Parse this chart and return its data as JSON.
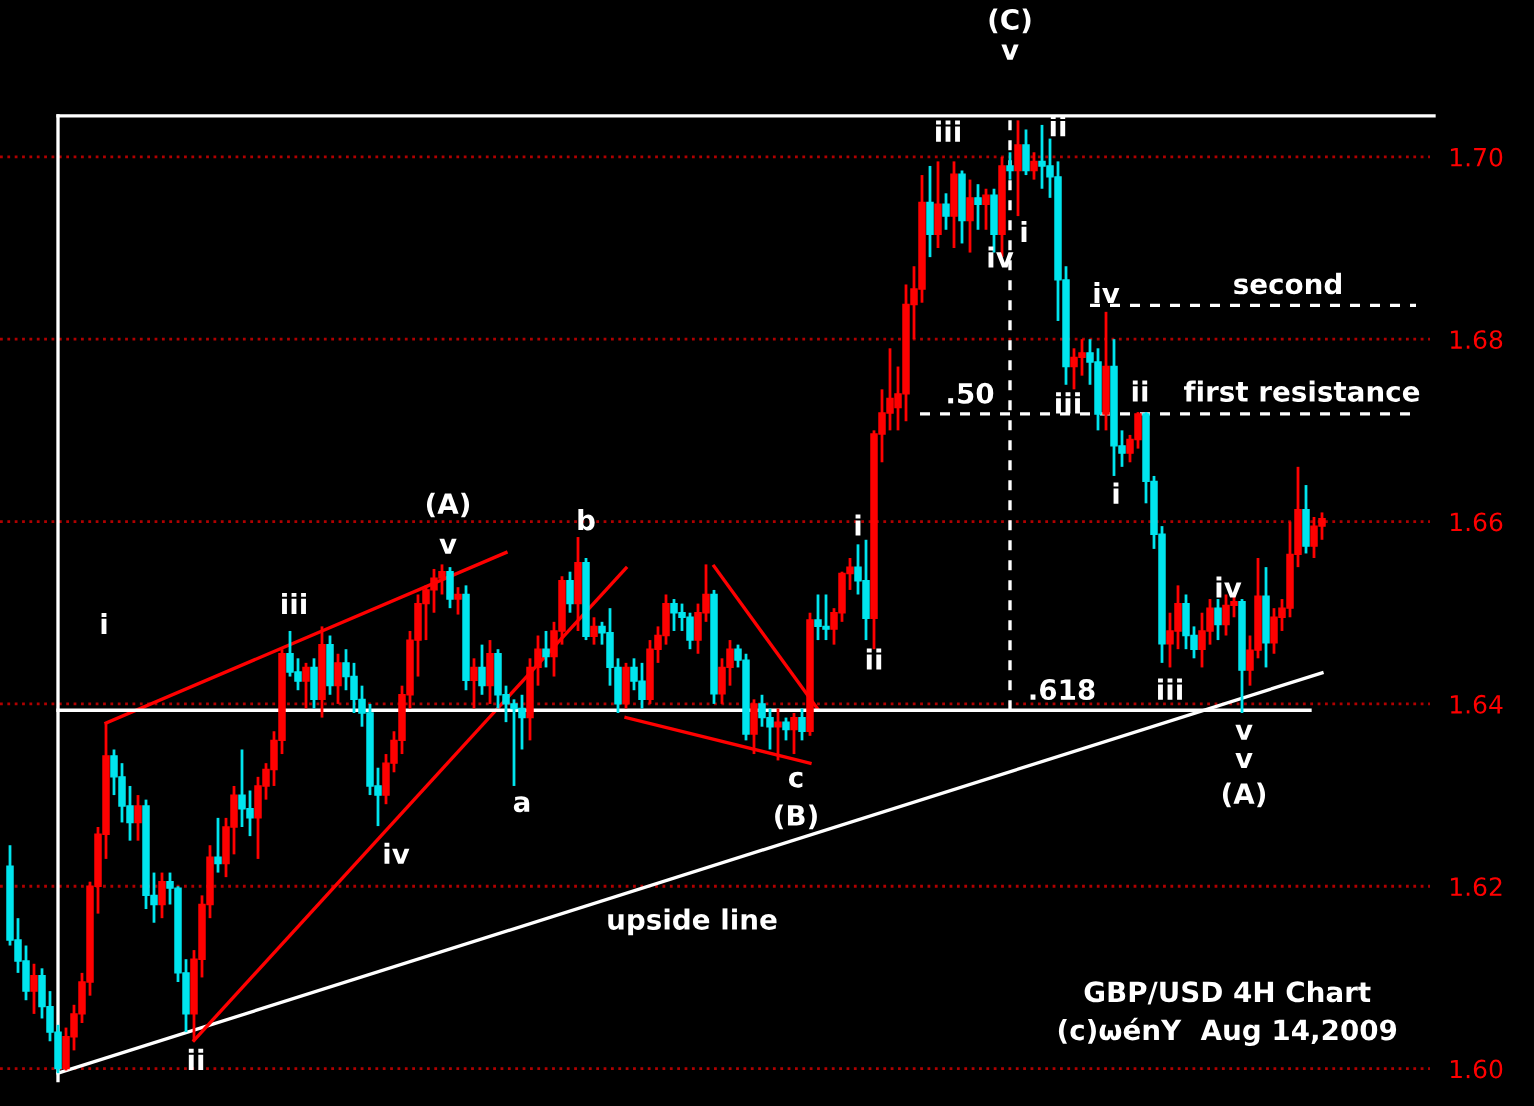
{
  "chart_data": {
    "type": "candlestick",
    "categories": [
      null,
      null,
      null,
      null,
      null,
      null,
      null,
      null,
      null,
      null,
      null,
      null,
      null,
      null,
      null,
      null,
      null,
      null,
      null,
      null,
      null,
      null,
      null,
      null,
      null,
      null,
      null,
      null,
      null,
      null,
      null,
      null,
      null,
      null,
      null,
      null,
      null,
      null,
      null,
      null,
      null,
      null,
      null,
      null,
      null,
      null,
      null,
      null,
      null,
      null,
      null,
      null,
      null,
      null,
      null,
      null,
      null,
      null,
      null,
      null,
      null,
      null,
      null,
      null,
      null,
      null,
      null,
      null,
      null,
      null,
      null,
      null,
      null,
      null,
      null,
      null,
      null,
      null,
      null,
      null,
      null,
      null,
      null,
      null,
      null,
      null,
      null,
      null,
      null,
      null,
      null,
      null,
      null,
      null,
      null,
      null,
      null,
      null,
      null,
      null,
      null,
      null,
      null,
      null,
      null,
      null,
      null,
      null,
      null,
      null,
      null,
      null,
      null,
      null,
      null,
      null,
      null,
      null,
      null,
      null,
      null,
      null,
      null,
      null,
      null,
      null,
      null,
      null,
      null,
      null,
      null,
      null,
      null,
      null,
      null,
      null,
      null,
      null,
      null,
      null,
      null,
      null,
      null,
      null,
      null,
      null,
      null,
      null,
      null,
      null,
      null,
      null,
      null,
      null,
      null,
      null,
      null,
      null,
      null,
      null,
      null,
      null,
      null,
      null,
      null
    ],
    "ohlc": [
      [
        1.6222,
        1.6245,
        1.6135,
        1.6141
      ],
      [
        1.6141,
        1.6165,
        1.6105,
        1.6118
      ],
      [
        1.6118,
        1.6135,
        1.6075,
        1.6085
      ],
      [
        1.6085,
        1.6115,
        1.606,
        1.6102
      ],
      [
        1.6102,
        1.611,
        1.6055,
        1.6068
      ],
      [
        1.6068,
        1.6085,
        1.603,
        1.604
      ],
      [
        1.604,
        1.6048,
        1.5995,
        1.6
      ],
      [
        1.6,
        1.6045,
        1.5998,
        1.6035
      ],
      [
        1.6035,
        1.607,
        1.602,
        1.606
      ],
      [
        1.606,
        1.6105,
        1.605,
        1.6095
      ],
      [
        1.6095,
        1.6205,
        1.608,
        1.62
      ],
      [
        1.62,
        1.6265,
        1.617,
        1.6257
      ],
      [
        1.6257,
        1.6378,
        1.623,
        1.6343
      ],
      [
        1.6343,
        1.635,
        1.63,
        1.632
      ],
      [
        1.632,
        1.6335,
        1.627,
        1.6288
      ],
      [
        1.6288,
        1.631,
        1.625,
        1.627
      ],
      [
        1.627,
        1.63,
        1.625,
        1.6288
      ],
      [
        1.6288,
        1.6295,
        1.6175,
        1.619
      ],
      [
        1.619,
        1.6215,
        1.616,
        1.618
      ],
      [
        1.618,
        1.6215,
        1.6165,
        1.6205
      ],
      [
        1.6205,
        1.6215,
        1.618,
        1.6198
      ],
      [
        1.6198,
        1.62,
        1.6095,
        1.6105
      ],
      [
        1.6105,
        1.612,
        1.604,
        1.606
      ],
      [
        1.606,
        1.613,
        1.603,
        1.612
      ],
      [
        1.612,
        1.619,
        1.61,
        1.618
      ],
      [
        1.618,
        1.6245,
        1.6165,
        1.6232
      ],
      [
        1.6232,
        1.6275,
        1.6215,
        1.6225
      ],
      [
        1.6225,
        1.6275,
        1.621,
        1.6265
      ],
      [
        1.6265,
        1.631,
        1.6235,
        1.63
      ],
      [
        1.63,
        1.635,
        1.6265,
        1.6285
      ],
      [
        1.6285,
        1.6305,
        1.6255,
        1.6275
      ],
      [
        1.6275,
        1.632,
        1.623,
        1.631
      ],
      [
        1.631,
        1.6335,
        1.6295,
        1.6328
      ],
      [
        1.6328,
        1.637,
        1.631,
        1.636
      ],
      [
        1.636,
        1.646,
        1.6345,
        1.6455
      ],
      [
        1.6455,
        1.648,
        1.643,
        1.6435
      ],
      [
        1.6435,
        1.645,
        1.6415,
        1.6425
      ],
      [
        1.6425,
        1.6445,
        1.6395,
        1.644
      ],
      [
        1.644,
        1.645,
        1.6395,
        1.6405
      ],
      [
        1.6405,
        1.6485,
        1.6385,
        1.6465
      ],
      [
        1.6465,
        1.6475,
        1.641,
        1.642
      ],
      [
        1.642,
        1.6455,
        1.64,
        1.6445
      ],
      [
        1.6445,
        1.646,
        1.6415,
        1.643
      ],
      [
        1.643,
        1.6445,
        1.639,
        1.6405
      ],
      [
        1.6405,
        1.642,
        1.6375,
        1.639
      ],
      [
        1.639,
        1.64,
        1.63,
        1.631
      ],
      [
        1.631,
        1.633,
        1.6266,
        1.63
      ],
      [
        1.63,
        1.6345,
        1.629,
        1.6335
      ],
      [
        1.6335,
        1.637,
        1.6325,
        1.636
      ],
      [
        1.636,
        1.642,
        1.6345,
        1.641
      ],
      [
        1.641,
        1.648,
        1.6395,
        1.647
      ],
      [
        1.647,
        1.652,
        1.643,
        1.651
      ],
      [
        1.651,
        1.653,
        1.647,
        1.6525
      ],
      [
        1.6525,
        1.6548,
        1.65,
        1.6538
      ],
      [
        1.6538,
        1.6553,
        1.652,
        1.6545
      ],
      [
        1.6545,
        1.655,
        1.6505,
        1.6515
      ],
      [
        1.6515,
        1.6528,
        1.6498,
        1.652
      ],
      [
        1.652,
        1.653,
        1.6415,
        1.6426
      ],
      [
        1.6426,
        1.645,
        1.6395,
        1.644
      ],
      [
        1.644,
        1.6465,
        1.641,
        1.642
      ],
      [
        1.642,
        1.647,
        1.64,
        1.6455
      ],
      [
        1.6455,
        1.646,
        1.6395,
        1.641
      ],
      [
        1.641,
        1.642,
        1.638,
        1.64
      ],
      [
        1.64,
        1.6405,
        1.631,
        1.6395
      ],
      [
        1.6395,
        1.641,
        1.635,
        1.6385
      ],
      [
        1.6385,
        1.645,
        1.636,
        1.644
      ],
      [
        1.644,
        1.6475,
        1.642,
        1.646
      ],
      [
        1.646,
        1.648,
        1.644,
        1.6452
      ],
      [
        1.6452,
        1.649,
        1.643,
        1.648
      ],
      [
        1.648,
        1.654,
        1.6465,
        1.6535
      ],
      [
        1.6535,
        1.6545,
        1.65,
        1.651
      ],
      [
        1.651,
        1.6583,
        1.648,
        1.6555
      ],
      [
        1.6555,
        1.656,
        1.647,
        1.6474
      ],
      [
        1.6474,
        1.6495,
        1.6465,
        1.6485
      ],
      [
        1.6485,
        1.649,
        1.6465,
        1.6478
      ],
      [
        1.6478,
        1.6505,
        1.642,
        1.644
      ],
      [
        1.644,
        1.645,
        1.639,
        1.64
      ],
      [
        1.64,
        1.6445,
        1.6395,
        1.644
      ],
      [
        1.644,
        1.645,
        1.6415,
        1.6425
      ],
      [
        1.6425,
        1.6445,
        1.6395,
        1.6405
      ],
      [
        1.6405,
        1.647,
        1.64,
        1.646
      ],
      [
        1.646,
        1.6485,
        1.6445,
        1.6475
      ],
      [
        1.6475,
        1.652,
        1.6465,
        1.651
      ],
      [
        1.651,
        1.6515,
        1.648,
        1.65
      ],
      [
        1.65,
        1.651,
        1.648,
        1.6495
      ],
      [
        1.6495,
        1.65,
        1.646,
        1.647
      ],
      [
        1.647,
        1.651,
        1.6455,
        1.65
      ],
      [
        1.65,
        1.6553,
        1.649,
        1.652
      ],
      [
        1.652,
        1.6525,
        1.64,
        1.6411
      ],
      [
        1.6411,
        1.645,
        1.64,
        1.644
      ],
      [
        1.644,
        1.647,
        1.642,
        1.646
      ],
      [
        1.646,
        1.6465,
        1.644,
        1.6448
      ],
      [
        1.6448,
        1.6455,
        1.636,
        1.6367
      ],
      [
        1.6367,
        1.6405,
        1.6345,
        1.64
      ],
      [
        1.64,
        1.641,
        1.6375,
        1.6385
      ],
      [
        1.6385,
        1.6395,
        1.635,
        1.6375
      ],
      [
        1.6375,
        1.6395,
        1.6338,
        1.638
      ],
      [
        1.638,
        1.6385,
        1.636,
        1.6372
      ],
      [
        1.6372,
        1.639,
        1.6345,
        1.6385
      ],
      [
        1.6385,
        1.6395,
        1.636,
        1.637
      ],
      [
        1.637,
        1.65,
        1.6365,
        1.6492
      ],
      [
        1.6492,
        1.652,
        1.647,
        1.6485
      ],
      [
        1.6485,
        1.652,
        1.647,
        1.6482
      ],
      [
        1.6482,
        1.6505,
        1.6465,
        1.65
      ],
      [
        1.65,
        1.6545,
        1.649,
        1.6543
      ],
      [
        1.6543,
        1.656,
        1.6525,
        1.655
      ],
      [
        1.655,
        1.6575,
        1.652,
        1.6535
      ],
      [
        1.6535,
        1.658,
        1.647,
        1.6494
      ],
      [
        1.6494,
        1.67,
        1.646,
        1.6696
      ],
      [
        1.6696,
        1.6745,
        1.6665,
        1.6719
      ],
      [
        1.6719,
        1.679,
        1.67,
        1.6735
      ],
      [
        1.6725,
        1.677,
        1.67,
        1.674
      ],
      [
        1.674,
        1.686,
        1.671,
        1.6838
      ],
      [
        1.6838,
        1.688,
        1.68,
        1.6855
      ],
      [
        1.6855,
        1.698,
        1.684,
        1.695
      ],
      [
        1.695,
        1.699,
        1.689,
        1.6915
      ],
      [
        1.6915,
        1.6995,
        1.69,
        1.6948
      ],
      [
        1.6948,
        1.696,
        1.692,
        1.6935
      ],
      [
        1.6935,
        1.6995,
        1.69,
        1.6981
      ],
      [
        1.6981,
        1.6985,
        1.6905,
        1.693
      ],
      [
        1.693,
        1.6975,
        1.6895,
        1.6955
      ],
      [
        1.6955,
        1.697,
        1.692,
        1.6948
      ],
      [
        1.6948,
        1.6965,
        1.692,
        1.6958
      ],
      [
        1.6958,
        1.6965,
        1.6895,
        1.6915
      ],
      [
        1.6915,
        1.7,
        1.689,
        1.699
      ],
      [
        1.699,
        1.7005,
        1.6975,
        1.6985
      ],
      [
        1.6985,
        1.704,
        1.6935,
        1.7013
      ],
      [
        1.7013,
        1.703,
        1.698,
        1.6985
      ],
      [
        1.6985,
        1.7005,
        1.6975,
        1.6995
      ],
      [
        1.6995,
        1.7035,
        1.6965,
        1.699
      ],
      [
        1.699,
        1.702,
        1.6955,
        1.6978
      ],
      [
        1.6978,
        1.6995,
        1.682,
        1.6865
      ],
      [
        1.6865,
        1.688,
        1.675,
        1.677
      ],
      [
        1.677,
        1.679,
        1.6745,
        1.678
      ],
      [
        1.678,
        1.68,
        1.676,
        1.6785
      ],
      [
        1.6785,
        1.68,
        1.675,
        1.6775
      ],
      [
        1.6775,
        1.679,
        1.67,
        1.6718
      ],
      [
        1.6718,
        1.683,
        1.67,
        1.677
      ],
      [
        1.677,
        1.68,
        1.665,
        1.6683
      ],
      [
        1.6683,
        1.67,
        1.666,
        1.6675
      ],
      [
        1.6675,
        1.6695,
        1.6665,
        1.669
      ],
      [
        1.669,
        1.672,
        1.668,
        1.6718
      ],
      [
        1.6718,
        1.672,
        1.662,
        1.6644
      ],
      [
        1.6644,
        1.665,
        1.657,
        1.6586
      ],
      [
        1.6586,
        1.6595,
        1.6445,
        1.6466
      ],
      [
        1.6466,
        1.65,
        1.644,
        1.648
      ],
      [
        1.648,
        1.653,
        1.646,
        1.651
      ],
      [
        1.651,
        1.652,
        1.646,
        1.6475
      ],
      [
        1.6475,
        1.6485,
        1.645,
        1.646
      ],
      [
        1.646,
        1.65,
        1.644,
        1.648
      ],
      [
        1.648,
        1.6515,
        1.6465,
        1.6505
      ],
      [
        1.6505,
        1.6515,
        1.647,
        1.6487
      ],
      [
        1.6487,
        1.652,
        1.6475,
        1.6508
      ],
      [
        1.6508,
        1.652,
        1.6495,
        1.6512
      ],
      [
        1.6512,
        1.6515,
        1.639,
        1.6437
      ],
      [
        1.6437,
        1.6475,
        1.642,
        1.6459
      ],
      [
        1.6459,
        1.656,
        1.645,
        1.6518
      ],
      [
        1.6518,
        1.655,
        1.644,
        1.6467
      ],
      [
        1.6467,
        1.6505,
        1.6455,
        1.6495
      ],
      [
        1.6495,
        1.6515,
        1.648,
        1.6505
      ],
      [
        1.6505,
        1.66,
        1.6495,
        1.6564
      ],
      [
        1.6564,
        1.666,
        1.655,
        1.6613
      ],
      [
        1.6613,
        1.664,
        1.6565,
        1.6573
      ],
      [
        1.6573,
        1.6605,
        1.656,
        1.6595
      ],
      [
        1.6595,
        1.661,
        1.658,
        1.6603
      ]
    ],
    "series": [
      {
        "type": "line",
        "name": "upside line",
        "color": "#ffffff",
        "values": [
          null,
          null,
          null,
          null,
          null,
          null,
          1.5995,
          null,
          null,
          null,
          null,
          null,
          null,
          null,
          null,
          null,
          null,
          null,
          null,
          null,
          null,
          null,
          null,
          null,
          null,
          null,
          null,
          null,
          null,
          null,
          null,
          null,
          null,
          null,
          null,
          null,
          null,
          null,
          null,
          null,
          null,
          null,
          null,
          null,
          null,
          null,
          null,
          null,
          null,
          null,
          null,
          null,
          null,
          null,
          null,
          null,
          null,
          null,
          null,
          null,
          null,
          null,
          null,
          null,
          null,
          null,
          null,
          null,
          null,
          null,
          null,
          null,
          null,
          null,
          null,
          null,
          null,
          null,
          null,
          null,
          null,
          null,
          null,
          null,
          null,
          null,
          null,
          null,
          null,
          null,
          null,
          null,
          null,
          null,
          null,
          null,
          null,
          null,
          null,
          null,
          null,
          null,
          null,
          null,
          null,
          null,
          null,
          null,
          null,
          null,
          null,
          null,
          null,
          null,
          null,
          null,
          null,
          null,
          null,
          null,
          null,
          null,
          null,
          null,
          null,
          null,
          null,
          null,
          null,
          null,
          null,
          null,
          null,
          null,
          null,
          null,
          null,
          null,
          null,
          null,
          null,
          null,
          null,
          null,
          null,
          null,
          null,
          null,
          null,
          null,
          null,
          null,
          null,
          null,
          null,
          null,
          null,
          null,
          null,
          null,
          null,
          null,
          null,
          null,
          1.6434
        ]
      },
      {
        "type": "line",
        "color": "#ff0000",
        "values": [
          null,
          null,
          null,
          null,
          null,
          null,
          null,
          null,
          null,
          null,
          null,
          null,
          1.6379,
          null,
          null,
          null,
          null,
          null,
          null,
          null,
          null,
          null,
          null,
          null,
          null,
          null,
          null,
          null,
          null,
          null,
          null,
          null,
          null,
          null,
          null,
          null,
          null,
          null,
          null,
          null,
          null,
          null,
          null,
          null,
          null,
          null,
          null,
          null,
          null,
          null,
          null,
          null,
          null,
          null,
          null,
          null,
          null,
          null,
          null,
          null,
          null,
          null,
          1.6566,
          null,
          null,
          null,
          null,
          null,
          null,
          null,
          null,
          null,
          null,
          null,
          null,
          null,
          null,
          null,
          null,
          null,
          null,
          null,
          null,
          null,
          null,
          null,
          null,
          null,
          null,
          null,
          null,
          null,
          null,
          null,
          null,
          null,
          null,
          null,
          null,
          null,
          null,
          null,
          null,
          null,
          null,
          null,
          null,
          null,
          null,
          null,
          null,
          null,
          null,
          null,
          null,
          null,
          null,
          null,
          null,
          null,
          null,
          null,
          null,
          null,
          null,
          null,
          null,
          null,
          null,
          null,
          null,
          null,
          null,
          null,
          null,
          null,
          null,
          null,
          null,
          null,
          null,
          null,
          null,
          null,
          null,
          null,
          null,
          null,
          null,
          null,
          null,
          null,
          null,
          null,
          null,
          null,
          null,
          null,
          null,
          null,
          null,
          null,
          null,
          null,
          null
        ]
      },
      {
        "type": "line",
        "color": "#ff0000",
        "values": [
          null,
          null,
          null,
          null,
          null,
          null,
          null,
          null,
          null,
          null,
          null,
          null,
          null,
          null,
          null,
          null,
          null,
          null,
          null,
          null,
          null,
          null,
          null,
          1.6031,
          null,
          null,
          null,
          null,
          null,
          null,
          null,
          null,
          null,
          null,
          null,
          null,
          null,
          null,
          null,
          null,
          null,
          null,
          null,
          null,
          null,
          null,
          null,
          null,
          null,
          null,
          null,
          null,
          null,
          null,
          null,
          null,
          null,
          null,
          null,
          null,
          null,
          null,
          null,
          null,
          null,
          null,
          null,
          null,
          null,
          null,
          null,
          null,
          null,
          null,
          null,
          null,
          null,
          1.6549,
          null,
          null,
          null,
          null,
          null,
          null,
          null,
          null,
          null,
          null,
          null,
          null,
          null,
          null,
          null,
          null,
          null,
          null,
          null,
          null,
          null,
          null,
          null,
          null,
          null,
          null,
          null,
          null,
          null,
          null,
          null,
          null,
          null,
          null,
          null,
          null,
          null,
          null,
          null,
          null,
          null,
          null,
          null,
          null,
          null,
          null,
          null,
          null,
          null,
          null,
          null,
          null,
          null,
          null,
          null,
          null,
          null,
          null,
          null,
          null,
          null,
          null,
          null,
          null,
          null,
          null,
          null,
          null,
          null,
          null,
          null,
          null,
          null,
          null,
          null,
          null,
          null,
          null,
          null,
          null,
          null,
          null,
          null,
          null,
          null,
          null,
          null
        ]
      },
      {
        "type": "line",
        "color": "#ff0000",
        "values": [
          null,
          null,
          null,
          null,
          null,
          null,
          null,
          null,
          null,
          null,
          null,
          null,
          null,
          null,
          null,
          null,
          null,
          null,
          null,
          null,
          null,
          null,
          null,
          null,
          null,
          null,
          null,
          null,
          null,
          null,
          null,
          null,
          null,
          null,
          null,
          null,
          null,
          null,
          null,
          null,
          null,
          null,
          null,
          null,
          null,
          null,
          null,
          null,
          null,
          null,
          null,
          null,
          null,
          null,
          null,
          null,
          null,
          null,
          null,
          null,
          null,
          null,
          null,
          null,
          null,
          null,
          null,
          null,
          null,
          null,
          null,
          null,
          null,
          null,
          null,
          null,
          null,
          null,
          null,
          null,
          null,
          null,
          null,
          null,
          null,
          null,
          null,
          null,
          1.6551,
          null,
          null,
          null,
          null,
          null,
          null,
          null,
          null,
          null,
          null,
          null,
          null,
          1.6394,
          null,
          null,
          null,
          null,
          null,
          null,
          null,
          null,
          null,
          null,
          null,
          null,
          null,
          null,
          null,
          null,
          null,
          null,
          null,
          null,
          null,
          null,
          null,
          null,
          null,
          null,
          null,
          null,
          null,
          null,
          null,
          null,
          null,
          null,
          null,
          null,
          null,
          null,
          null,
          null,
          null,
          null,
          null,
          null,
          null,
          null,
          null,
          null,
          null,
          null,
          null,
          null,
          null,
          null,
          null,
          null,
          null,
          null,
          null,
          null,
          null,
          null,
          null
        ]
      },
      {
        "type": "line",
        "color": "#ff0000",
        "values": [
          null,
          null,
          null,
          null,
          null,
          null,
          null,
          null,
          null,
          null,
          null,
          null,
          null,
          null,
          null,
          null,
          null,
          null,
          null,
          null,
          null,
          null,
          null,
          null,
          null,
          null,
          null,
          null,
          null,
          null,
          null,
          null,
          null,
          null,
          null,
          null,
          null,
          null,
          null,
          null,
          null,
          null,
          null,
          null,
          null,
          null,
          null,
          null,
          null,
          null,
          null,
          null,
          null,
          null,
          null,
          null,
          null,
          null,
          null,
          null,
          null,
          null,
          null,
          null,
          null,
          null,
          null,
          null,
          null,
          null,
          null,
          null,
          null,
          null,
          null,
          null,
          null,
          1.6385,
          null,
          null,
          null,
          null,
          null,
          null,
          null,
          null,
          null,
          null,
          null,
          null,
          null,
          null,
          null,
          null,
          null,
          null,
          null,
          null,
          null,
          null,
          1.6335,
          null,
          null,
          null,
          null,
          null,
          null,
          null,
          null,
          null,
          null,
          null,
          null,
          null,
          null,
          null,
          null,
          null,
          null,
          null,
          null,
          null,
          null,
          null,
          null,
          null,
          null,
          null,
          null,
          null,
          null,
          null,
          null,
          null,
          null,
          null,
          null,
          null,
          null,
          null,
          null,
          null,
          null,
          null,
          null,
          null,
          null,
          null,
          null,
          null,
          null,
          null,
          null,
          null,
          null,
          null,
          null,
          null,
          null,
          null,
          null,
          null,
          null,
          null,
          null
        ]
      }
    ],
    "ref_lines": [
      {
        "axis": "y",
        "value": 1.6393,
        "color": "#ffffff",
        "line_style": "solid"
      },
      {
        "axis": "y",
        "value": 1.7045,
        "color": "#ffffff",
        "line_style": "solid"
      },
      {
        "axis": "y",
        "value": 1.6837,
        "label": "second",
        "color": "#ffffff",
        "line_style": "dashed"
      },
      {
        "axis": "y",
        "value": 1.6718,
        "label": "first resistance",
        "color": "#ffffff",
        "line_style": "dashed"
      }
    ],
    "ylim": [
      1.5959,
      1.7172
    ],
    "yticks": [
      {
        "value": 1.6,
        "label": "1.60"
      },
      {
        "value": 1.62,
        "label": "1.62"
      },
      {
        "value": 1.64,
        "label": "1.64"
      },
      {
        "value": 1.66,
        "label": "1.66"
      },
      {
        "value": 1.68,
        "label": "1.68"
      },
      {
        "value": 1.7,
        "label": "1.70"
      }
    ],
    "grid": "y",
    "tick_labels": "y",
    "annotations": [
      "i",
      "ii",
      "iii",
      "iv",
      "(A)",
      "v",
      "a",
      "b",
      "c",
      "(B)",
      "i",
      "ii",
      ".50",
      "iii",
      "iv",
      "i",
      "(C)",
      "v",
      "ii",
      "iii",
      "iv",
      "ii",
      "i",
      "iv",
      "iii",
      ".618",
      "v",
      "v",
      "(A)",
      "GBP/USD 4H Chart",
      "(c)ωénY  Aug 14,2009"
    ]
  }
}
